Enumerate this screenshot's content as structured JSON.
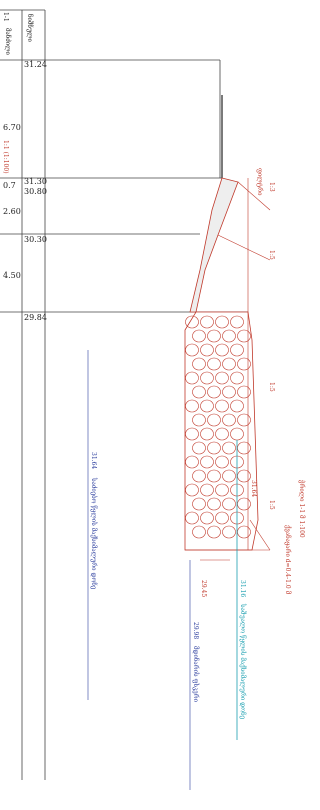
{
  "section_title": "1-1",
  "table": {
    "headers": [
      "ნიშნული",
      "მანძილი"
    ],
    "elevations": [
      "31.24",
      "31.30",
      "30.80",
      "30.30",
      "29.84"
    ],
    "distances": [
      "6.70",
      "0.7",
      "2.60",
      "4.50"
    ]
  },
  "drawing": {
    "filter_label": "ფილტრი",
    "slopes": [
      "1:3",
      "1:5",
      "1:5",
      "1:5"
    ],
    "section_caption": "ჭრილი 1-1 მ 1:100",
    "stone_caption": "ქვანაყარი d=0.4-1.0 მ",
    "crest_mark": "31.64",
    "toe_mark": "29.45",
    "side_note": "1:1 (1:100)"
  },
  "levels": [
    {
      "value": "31.64",
      "label": "საძიებო წყლის მაქსიმალური დონე"
    },
    {
      "value": "31.16",
      "label": "საშუალო წყლის მაქსიმალური დონე"
    },
    {
      "value": "29.98",
      "label": "მდინარის ფსკერი"
    }
  ]
}
